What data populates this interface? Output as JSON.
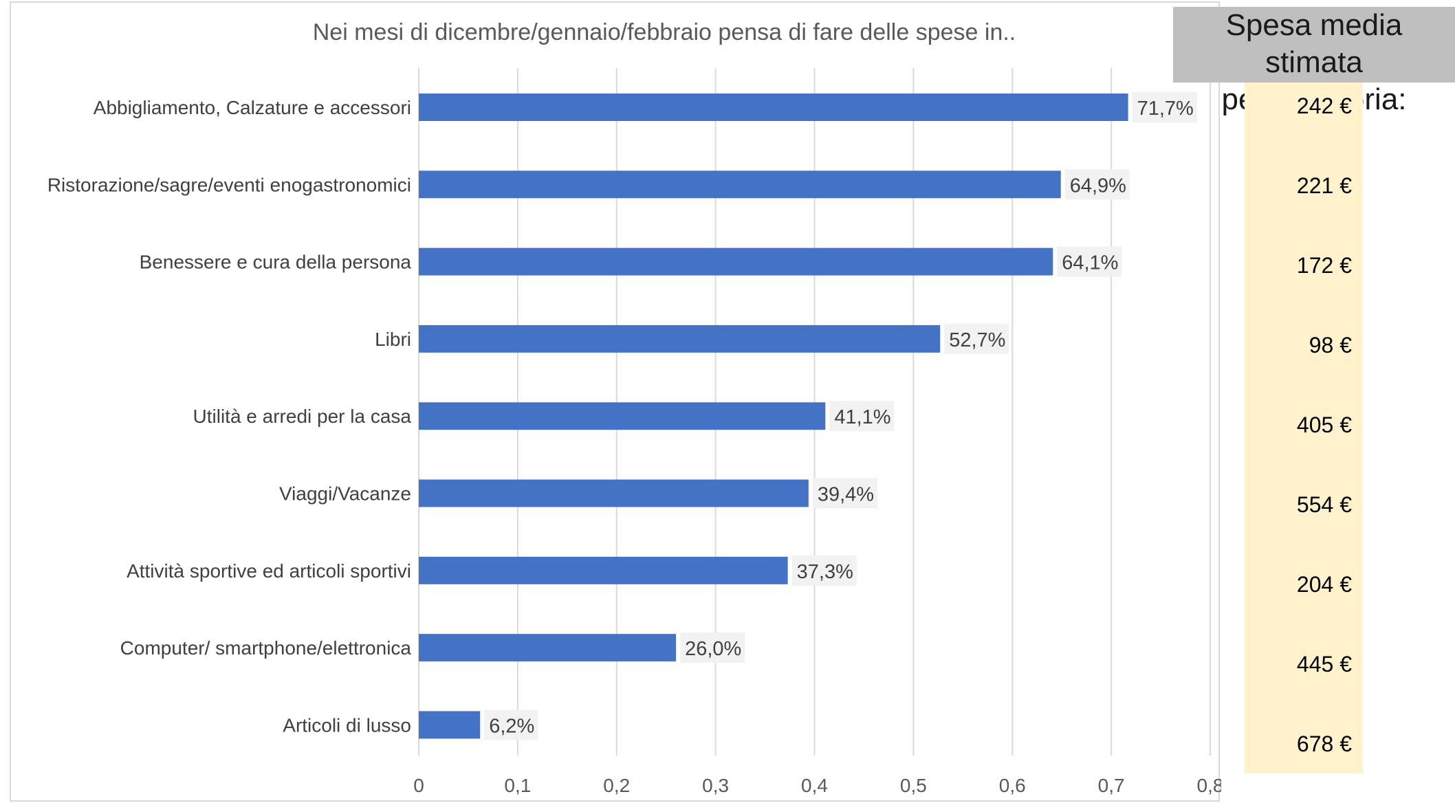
{
  "chart_data": {
    "type": "bar",
    "orientation": "horizontal",
    "title": "Nei mesi di dicembre/gennaio/febbraio pensa di fare delle spese in..",
    "categories": [
      "Abbigliamento, Calzature e accessori",
      "Ristorazione/sagre/eventi enogastronomici",
      "Benessere e cura della persona",
      "Libri",
      "Utilità e arredi per la casa",
      "Viaggi/Vacanze",
      "Attività sportive ed articoli sportivi",
      "Computer/ smartphone/elettronica",
      "Articoli di lusso"
    ],
    "values": [
      0.717,
      0.649,
      0.641,
      0.527,
      0.411,
      0.394,
      0.373,
      0.26,
      0.062
    ],
    "data_labels": [
      "71,7%",
      "64,9%",
      "64,1%",
      "52,7%",
      "41,1%",
      "39,4%",
      "37,3%",
      "26,0%",
      "6,2%"
    ],
    "xlim": [
      0,
      0.8
    ],
    "xticks": [
      "0",
      "0,1",
      "0,2",
      "0,3",
      "0,4",
      "0,5",
      "0,6",
      "0,7",
      "0,8"
    ],
    "grid": "vertical",
    "bar_color": "#4472c4",
    "label_bg_color": "#f2f2f2"
  },
  "side_table": {
    "heading": "Spesa media stimata\nper categoria:",
    "values": [
      "242 €",
      "221 €",
      "172 €",
      "98 €",
      "405 €",
      "554 €",
      "204 €",
      "445 €",
      "678 €"
    ],
    "heading_bg": "#bfbfbf",
    "panel_bg": "#fff2cc"
  }
}
